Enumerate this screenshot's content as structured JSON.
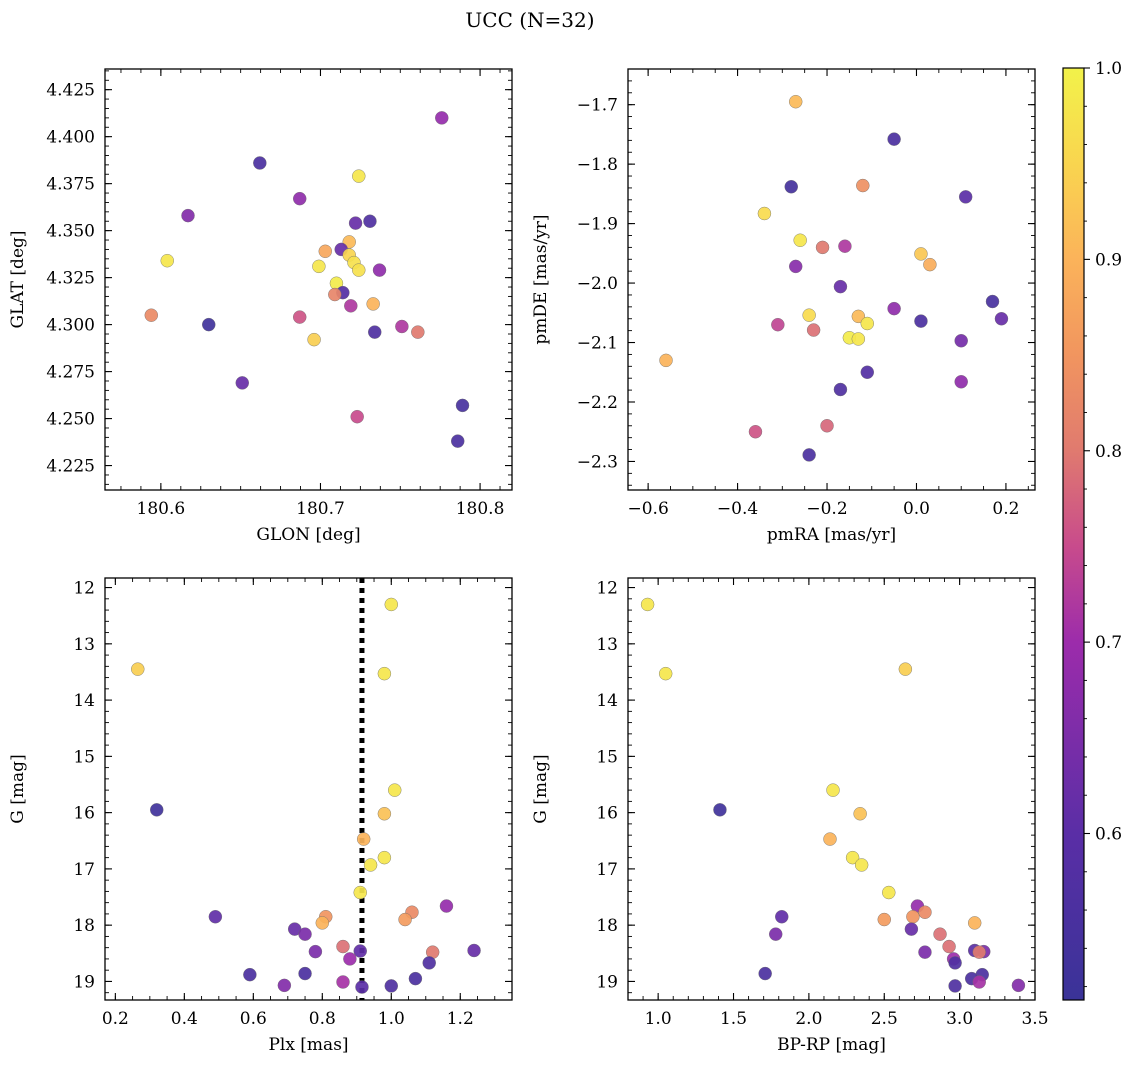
{
  "figure": {
    "title": "UCC (N=32)"
  },
  "colorbar": {
    "range": [
      0.513,
      1.0
    ],
    "ticks": [
      "0.6",
      "0.7",
      "0.8",
      "0.9",
      "1.0"
    ],
    "tick_values": [
      0.6,
      0.7,
      0.8,
      0.9,
      1.0
    ],
    "colormap": "plasma",
    "stops": [
      [
        0.513,
        "#3a3398"
      ],
      [
        0.6,
        "#5a2ea6"
      ],
      [
        0.7,
        "#9c2cab"
      ],
      [
        0.75,
        "#c84b8c"
      ],
      [
        0.8,
        "#e07a6f"
      ],
      [
        0.85,
        "#f1955f"
      ],
      [
        0.9,
        "#fbb35a"
      ],
      [
        0.95,
        "#f9d54f"
      ],
      [
        1.0,
        "#f2f24a"
      ]
    ]
  },
  "chart_data": [
    {
      "id": "gal",
      "type": "scatter",
      "xlabel": "GLON [deg]",
      "ylabel": "GLAT [deg]",
      "xlim": [
        180.565,
        180.82
      ],
      "ylim": [
        4.212,
        4.436
      ],
      "xticks": [
        "180.6",
        "180.7",
        "180.8"
      ],
      "xtick_values": [
        180.6,
        180.7,
        180.8
      ],
      "yticks": [
        "4.225",
        "4.250",
        "4.275",
        "4.300",
        "4.325",
        "4.350",
        "4.375",
        "4.400",
        "4.425"
      ],
      "ytick_values": [
        4.225,
        4.25,
        4.275,
        4.3,
        4.325,
        4.35,
        4.375,
        4.4,
        4.425
      ],
      "points": [
        {
          "x": 180.776,
          "y": 4.41,
          "p": 0.69
        },
        {
          "x": 180.662,
          "y": 4.386,
          "p": 0.56
        },
        {
          "x": 180.724,
          "y": 4.379,
          "p": 0.98
        },
        {
          "x": 180.687,
          "y": 4.367,
          "p": 0.68
        },
        {
          "x": 180.617,
          "y": 4.358,
          "p": 0.66
        },
        {
          "x": 180.731,
          "y": 4.355,
          "p": 0.57
        },
        {
          "x": 180.722,
          "y": 4.354,
          "p": 0.62
        },
        {
          "x": 180.718,
          "y": 4.344,
          "p": 0.91
        },
        {
          "x": 180.713,
          "y": 4.34,
          "p": 0.62
        },
        {
          "x": 180.703,
          "y": 4.339,
          "p": 0.88
        },
        {
          "x": 180.718,
          "y": 4.337,
          "p": 0.95
        },
        {
          "x": 180.604,
          "y": 4.334,
          "p": 0.98
        },
        {
          "x": 180.721,
          "y": 4.333,
          "p": 0.97
        },
        {
          "x": 180.699,
          "y": 4.331,
          "p": 0.98
        },
        {
          "x": 180.737,
          "y": 4.329,
          "p": 0.68
        },
        {
          "x": 180.724,
          "y": 4.329,
          "p": 0.97
        },
        {
          "x": 180.71,
          "y": 4.322,
          "p": 0.99
        },
        {
          "x": 180.714,
          "y": 4.317,
          "p": 0.58
        },
        {
          "x": 180.709,
          "y": 4.316,
          "p": 0.82
        },
        {
          "x": 180.733,
          "y": 4.311,
          "p": 0.9
        },
        {
          "x": 180.719,
          "y": 4.31,
          "p": 0.72
        },
        {
          "x": 180.594,
          "y": 4.305,
          "p": 0.83
        },
        {
          "x": 180.687,
          "y": 4.304,
          "p": 0.76
        },
        {
          "x": 180.63,
          "y": 4.3,
          "p": 0.53
        },
        {
          "x": 180.751,
          "y": 4.299,
          "p": 0.72
        },
        {
          "x": 180.761,
          "y": 4.296,
          "p": 0.8
        },
        {
          "x": 180.734,
          "y": 4.296,
          "p": 0.57
        },
        {
          "x": 180.696,
          "y": 4.292,
          "p": 0.94
        },
        {
          "x": 180.651,
          "y": 4.269,
          "p": 0.62
        },
        {
          "x": 180.789,
          "y": 4.257,
          "p": 0.55
        },
        {
          "x": 180.723,
          "y": 4.251,
          "p": 0.75
        },
        {
          "x": 180.786,
          "y": 4.238,
          "p": 0.56
        }
      ]
    },
    {
      "id": "pm",
      "type": "scatter",
      "xlabel": "pmRA [mas/yr]",
      "ylabel": "pmDE [mas/yr]",
      "xlim": [
        -0.645,
        0.265
      ],
      "ylim": [
        -2.348,
        -1.64
      ],
      "xticks": [
        "−0.6",
        "−0.4",
        "−0.2",
        "0.0",
        "0.2"
      ],
      "xtick_values": [
        -0.6,
        -0.4,
        -0.2,
        0.0,
        0.2
      ],
      "yticks": [
        "−1.7",
        "−1.8",
        "−1.9",
        "−2.0",
        "−2.1",
        "−2.2",
        "−2.3"
      ],
      "ytick_values": [
        -1.7,
        -1.8,
        -1.9,
        -2.0,
        -2.1,
        -2.2,
        -2.3
      ],
      "points": [
        {
          "x": -0.27,
          "y": -1.695,
          "p": 0.91
        },
        {
          "x": -0.05,
          "y": -1.758,
          "p": 0.56
        },
        {
          "x": -0.28,
          "y": -1.838,
          "p": 0.54
        },
        {
          "x": -0.12,
          "y": -1.836,
          "p": 0.84
        },
        {
          "x": 0.11,
          "y": -1.855,
          "p": 0.6
        },
        {
          "x": -0.34,
          "y": -1.883,
          "p": 0.96
        },
        {
          "x": -0.26,
          "y": -1.928,
          "p": 0.98
        },
        {
          "x": -0.21,
          "y": -1.94,
          "p": 0.8
        },
        {
          "x": -0.16,
          "y": -1.938,
          "p": 0.72
        },
        {
          "x": 0.01,
          "y": -1.951,
          "p": 0.93
        },
        {
          "x": -0.27,
          "y": -1.972,
          "p": 0.67
        },
        {
          "x": 0.03,
          "y": -1.969,
          "p": 0.89
        },
        {
          "x": -0.17,
          "y": -2.006,
          "p": 0.62
        },
        {
          "x": 0.17,
          "y": -2.031,
          "p": 0.55
        },
        {
          "x": -0.05,
          "y": -2.043,
          "p": 0.68
        },
        {
          "x": -0.24,
          "y": -2.054,
          "p": 0.96
        },
        {
          "x": -0.13,
          "y": -2.056,
          "p": 0.91
        },
        {
          "x": 0.19,
          "y": -2.06,
          "p": 0.62
        },
        {
          "x": 0.01,
          "y": -2.064,
          "p": 0.56
        },
        {
          "x": -0.11,
          "y": -2.068,
          "p": 0.98
        },
        {
          "x": -0.31,
          "y": -2.07,
          "p": 0.74
        },
        {
          "x": -0.23,
          "y": -2.079,
          "p": 0.79
        },
        {
          "x": -0.15,
          "y": -2.092,
          "p": 0.99
        },
        {
          "x": -0.13,
          "y": -2.094,
          "p": 0.98
        },
        {
          "x": 0.1,
          "y": -2.097,
          "p": 0.64
        },
        {
          "x": -0.56,
          "y": -2.13,
          "p": 0.9
        },
        {
          "x": -0.11,
          "y": -2.15,
          "p": 0.58
        },
        {
          "x": 0.1,
          "y": -2.166,
          "p": 0.68
        },
        {
          "x": -0.17,
          "y": -2.179,
          "p": 0.57
        },
        {
          "x": -0.2,
          "y": -2.24,
          "p": 0.78
        },
        {
          "x": -0.36,
          "y": -2.25,
          "p": 0.76
        },
        {
          "x": -0.24,
          "y": -2.289,
          "p": 0.56
        }
      ]
    },
    {
      "id": "plx",
      "type": "scatter",
      "xlabel": "Plx [mas]",
      "ylabel": "G [mag]",
      "xlim": [
        0.17,
        1.35
      ],
      "ylim": [
        19.33,
        11.83
      ],
      "xticks": [
        "0.2",
        "0.4",
        "0.6",
        "0.8",
        "1.0",
        "1.2"
      ],
      "xtick_values": [
        0.2,
        0.4,
        0.6,
        0.8,
        1.0,
        1.2
      ],
      "yticks": [
        "12",
        "13",
        "14",
        "15",
        "16",
        "17",
        "18",
        "19"
      ],
      "ytick_values": [
        12,
        13,
        14,
        15,
        16,
        17,
        18,
        19
      ],
      "vline": 0.915,
      "points": [
        {
          "x": 1.0,
          "y": 12.3,
          "p": 0.98
        },
        {
          "x": 0.265,
          "y": 13.45,
          "p": 0.94
        },
        {
          "x": 0.98,
          "y": 13.53,
          "p": 0.98
        },
        {
          "x": 1.01,
          "y": 15.6,
          "p": 0.98
        },
        {
          "x": 0.32,
          "y": 15.95,
          "p": 0.53
        },
        {
          "x": 0.98,
          "y": 16.02,
          "p": 0.92
        },
        {
          "x": 0.92,
          "y": 16.47,
          "p": 0.9
        },
        {
          "x": 0.98,
          "y": 16.8,
          "p": 0.98
        },
        {
          "x": 0.94,
          "y": 16.93,
          "p": 0.98
        },
        {
          "x": 0.91,
          "y": 17.42,
          "p": 0.98
        },
        {
          "x": 1.16,
          "y": 17.66,
          "p": 0.69
        },
        {
          "x": 1.06,
          "y": 17.77,
          "p": 0.83
        },
        {
          "x": 0.49,
          "y": 17.85,
          "p": 0.61
        },
        {
          "x": 0.81,
          "y": 17.85,
          "p": 0.85
        },
        {
          "x": 1.04,
          "y": 17.9,
          "p": 0.86
        },
        {
          "x": 0.8,
          "y": 17.96,
          "p": 0.9
        },
        {
          "x": 0.72,
          "y": 18.07,
          "p": 0.62
        },
        {
          "x": 0.75,
          "y": 18.16,
          "p": 0.65
        },
        {
          "x": 0.86,
          "y": 18.38,
          "p": 0.79
        },
        {
          "x": 1.24,
          "y": 18.45,
          "p": 0.62
        },
        {
          "x": 0.91,
          "y": 18.46,
          "p": 0.61
        },
        {
          "x": 0.78,
          "y": 18.47,
          "p": 0.65
        },
        {
          "x": 1.12,
          "y": 18.48,
          "p": 0.8
        },
        {
          "x": 0.88,
          "y": 18.6,
          "p": 0.7
        },
        {
          "x": 1.11,
          "y": 18.67,
          "p": 0.57
        },
        {
          "x": 0.59,
          "y": 18.88,
          "p": 0.56
        },
        {
          "x": 0.75,
          "y": 18.86,
          "p": 0.56
        },
        {
          "x": 1.07,
          "y": 18.95,
          "p": 0.56
        },
        {
          "x": 0.86,
          "y": 19.01,
          "p": 0.71
        },
        {
          "x": 0.69,
          "y": 19.07,
          "p": 0.66
        },
        {
          "x": 1.0,
          "y": 19.08,
          "p": 0.57
        },
        {
          "x": 0.915,
          "y": 19.1,
          "p": 0.6
        }
      ]
    },
    {
      "id": "cmd",
      "type": "scatter",
      "xlabel": "BP-RP [mag]",
      "ylabel": "G [mag]",
      "xlim": [
        0.8,
        3.5
      ],
      "ylim": [
        19.33,
        11.83
      ],
      "xticks": [
        "1.0",
        "1.5",
        "2.0",
        "2.5",
        "3.0",
        "3.5"
      ],
      "xtick_values": [
        1.0,
        1.5,
        2.0,
        2.5,
        3.0,
        3.5
      ],
      "yticks": [
        "12",
        "13",
        "14",
        "15",
        "16",
        "17",
        "18",
        "19"
      ],
      "ytick_values": [
        12,
        13,
        14,
        15,
        16,
        17,
        18,
        19
      ],
      "points": [
        {
          "x": 0.93,
          "y": 12.3,
          "p": 0.98
        },
        {
          "x": 1.05,
          "y": 13.53,
          "p": 0.98
        },
        {
          "x": 2.64,
          "y": 13.45,
          "p": 0.94
        },
        {
          "x": 1.41,
          "y": 15.95,
          "p": 0.53
        },
        {
          "x": 2.16,
          "y": 15.6,
          "p": 0.98
        },
        {
          "x": 2.34,
          "y": 16.02,
          "p": 0.92
        },
        {
          "x": 2.14,
          "y": 16.47,
          "p": 0.9
        },
        {
          "x": 2.29,
          "y": 16.8,
          "p": 0.98
        },
        {
          "x": 2.35,
          "y": 16.93,
          "p": 0.98
        },
        {
          "x": 2.53,
          "y": 17.42,
          "p": 0.98
        },
        {
          "x": 2.72,
          "y": 17.66,
          "p": 0.69
        },
        {
          "x": 2.77,
          "y": 17.77,
          "p": 0.83
        },
        {
          "x": 1.82,
          "y": 17.85,
          "p": 0.61
        },
        {
          "x": 2.69,
          "y": 17.85,
          "p": 0.85
        },
        {
          "x": 2.5,
          "y": 17.9,
          "p": 0.86
        },
        {
          "x": 3.1,
          "y": 17.96,
          "p": 0.9
        },
        {
          "x": 2.68,
          "y": 18.07,
          "p": 0.62
        },
        {
          "x": 1.78,
          "y": 18.16,
          "p": 0.65
        },
        {
          "x": 2.87,
          "y": 18.16,
          "p": 0.79
        },
        {
          "x": 2.93,
          "y": 18.38,
          "p": 0.79
        },
        {
          "x": 3.1,
          "y": 18.45,
          "p": 0.6
        },
        {
          "x": 3.16,
          "y": 18.47,
          "p": 0.65
        },
        {
          "x": 2.77,
          "y": 18.48,
          "p": 0.65
        },
        {
          "x": 3.13,
          "y": 18.48,
          "p": 0.8
        },
        {
          "x": 2.96,
          "y": 18.6,
          "p": 0.7
        },
        {
          "x": 2.97,
          "y": 18.67,
          "p": 0.57
        },
        {
          "x": 1.71,
          "y": 18.86,
          "p": 0.56
        },
        {
          "x": 3.15,
          "y": 18.88,
          "p": 0.56
        },
        {
          "x": 3.08,
          "y": 18.95,
          "p": 0.56
        },
        {
          "x": 3.13,
          "y": 19.01,
          "p": 0.71
        },
        {
          "x": 2.97,
          "y": 19.08,
          "p": 0.57
        },
        {
          "x": 3.39,
          "y": 19.07,
          "p": 0.66
        }
      ]
    }
  ]
}
